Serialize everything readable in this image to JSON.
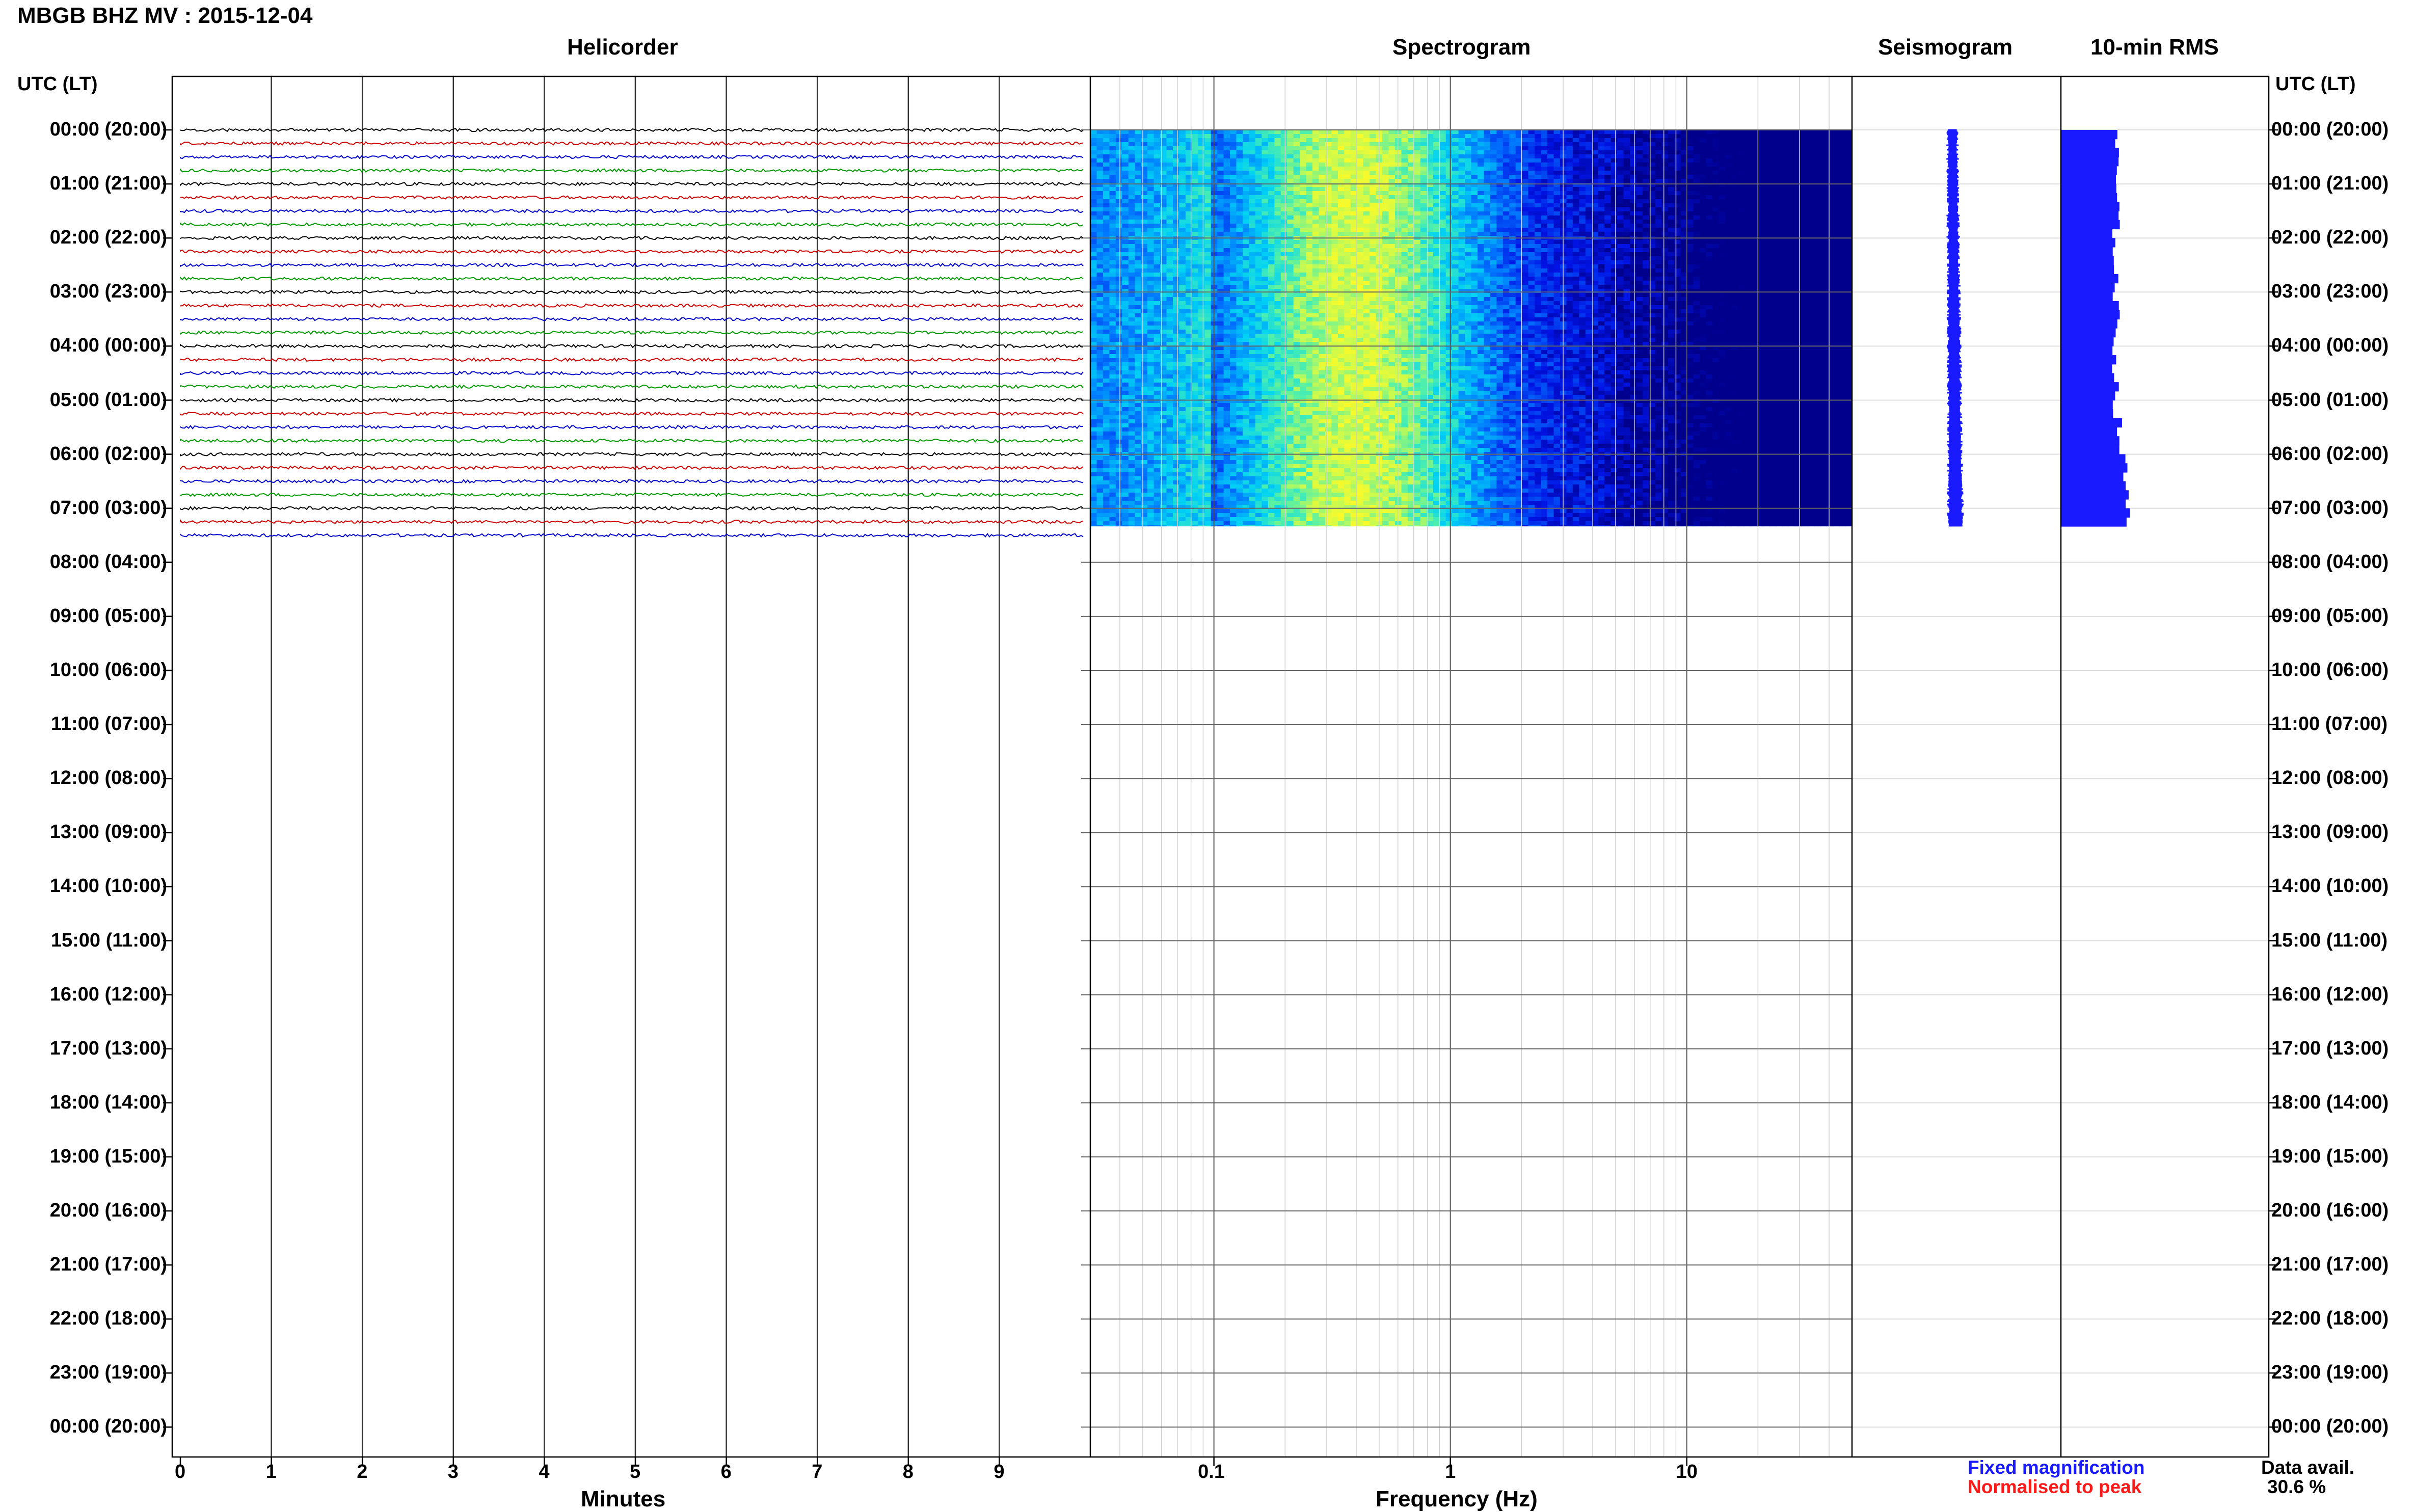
{
  "title": "MBGB BHZ MV : 2015-12-04",
  "panels": {
    "helicorder": "Helicorder",
    "spectrogram": "Spectrogram",
    "seismogram": "Seismogram",
    "rms": "10-min RMS"
  },
  "axis": {
    "left_header": "UTC (LT)",
    "right_header": "UTC (LT)",
    "minutes_label": "Minutes",
    "frequency_label": "Frequency (Hz)"
  },
  "time_labels": [
    "00:00 (20:00)",
    "01:00 (21:00)",
    "02:00 (22:00)",
    "03:00 (23:00)",
    "04:00 (00:00)",
    "05:00 (01:00)",
    "06:00 (02:00)",
    "07:00 (03:00)",
    "08:00 (04:00)",
    "09:00 (05:00)",
    "10:00 (06:00)",
    "11:00 (07:00)",
    "12:00 (08:00)",
    "13:00 (09:00)",
    "14:00 (10:00)",
    "15:00 (11:00)",
    "16:00 (12:00)",
    "17:00 (13:00)",
    "18:00 (14:00)",
    "19:00 (15:00)",
    "20:00 (16:00)",
    "21:00 (17:00)",
    "22:00 (18:00)",
    "23:00 (19:00)",
    "00:00 (20:00)"
  ],
  "legend": {
    "fixed": "Fixed magnification",
    "normalised": "Normalised to peak",
    "fixed_color": "#1a1aff",
    "normalised_color": "#ff1a1a",
    "data_avail_label": "Data avail.",
    "data_avail_value": "30.6 %"
  },
  "chart_data": {
    "type": "heatmap",
    "helicorder": {
      "x_label": "Minutes",
      "x_ticks": [
        "0",
        "1",
        "2",
        "3",
        "4",
        "5",
        "6",
        "7",
        "8",
        "9"
      ],
      "xlim": [
        0,
        10
      ],
      "trace_colors": [
        "#000000",
        "#cc0000",
        "#0000cc",
        "#009900"
      ],
      "traces_per_hour": 4,
      "data_until_hour": 7.67
    },
    "spectrogram": {
      "x_label": "Frequency (Hz)",
      "x_scale": "log",
      "x_ticks": [
        "0.1",
        "1",
        "10"
      ],
      "xlim": [
        0.03,
        50
      ],
      "data_until_hour": 7.33
    },
    "seismogram": {
      "data_until_hour": 7.33,
      "color": "#1a1aff"
    },
    "rms": {
      "data_until_hour": 7.33,
      "color": "#1a1aff"
    },
    "data_availability_percent": 30.6
  }
}
